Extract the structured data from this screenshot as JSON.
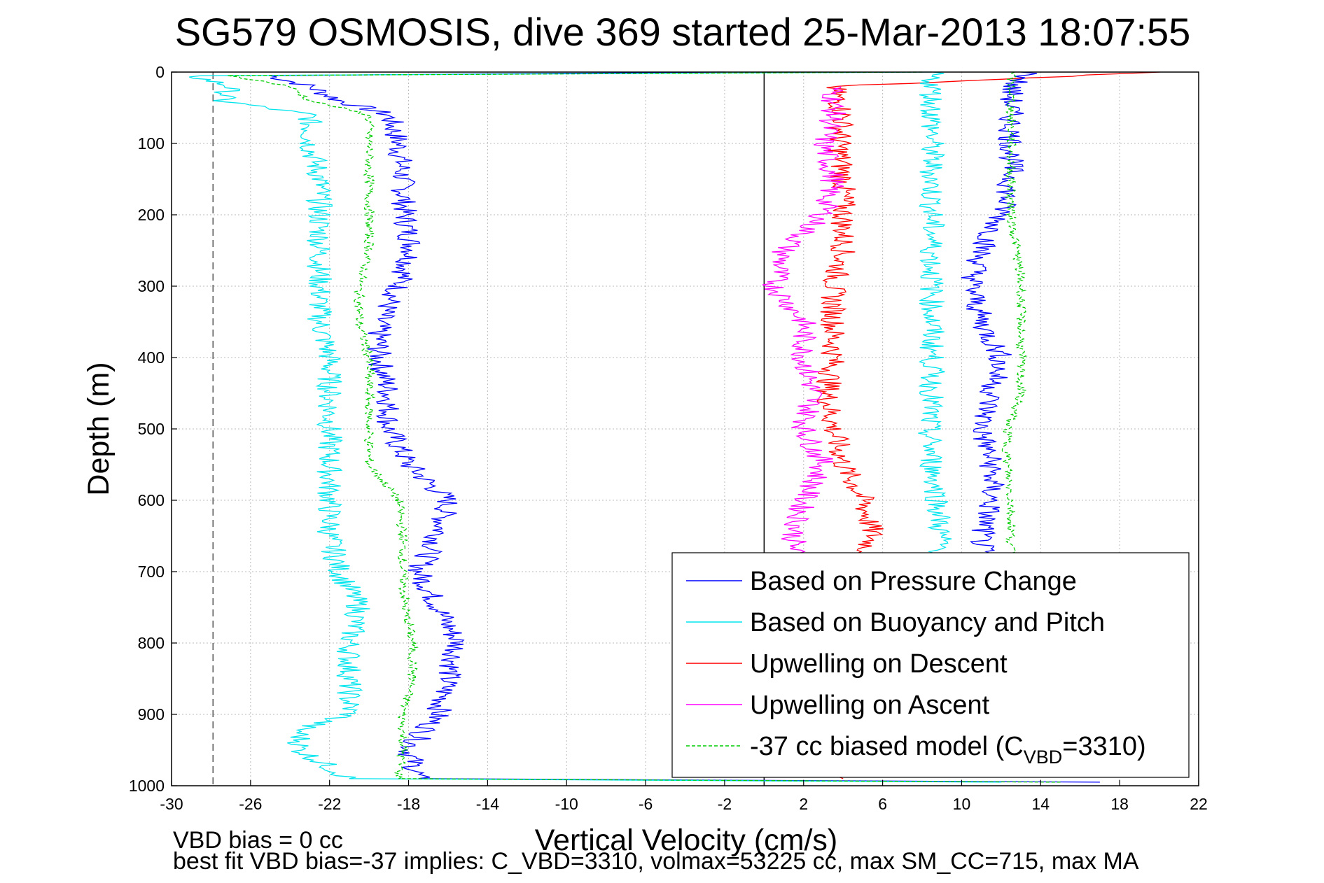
{
  "chart_data": {
    "type": "line",
    "title": "SG579 OSMOSIS, dive 369 started 25-Mar-2013 18:07:55",
    "xlabel": "Vertical Velocity (cm/s)",
    "ylabel": "Depth (m)",
    "xlim": [
      -30,
      22
    ],
    "ylim": [
      0,
      1000
    ],
    "y_reversed": true,
    "grid": true,
    "xticks": [
      -30,
      -26,
      -22,
      -18,
      -14,
      -10,
      -6,
      -2,
      2,
      6,
      10,
      14,
      18,
      22
    ],
    "yticks": [
      0,
      100,
      200,
      300,
      400,
      500,
      600,
      700,
      800,
      900,
      1000
    ],
    "reference_lines": [
      {
        "x": -27.9,
        "style": "dashed",
        "color": "#555555"
      },
      {
        "x": 0,
        "style": "solid",
        "color": "#000000"
      }
    ],
    "legend_position": "lower-right",
    "series": [
      {
        "name": "Based on Pressure Change",
        "color": "#0000ff",
        "style": "solid",
        "depth": [
          0,
          5,
          20,
          40,
          60,
          100,
          150,
          200,
          250,
          300,
          350,
          400,
          450,
          500,
          550,
          600,
          650,
          700,
          750,
          800,
          850,
          900,
          950,
          990,
          995
        ],
        "velocity": [
          -2,
          -25,
          -23,
          -21.5,
          -19,
          -18.5,
          -18.3,
          -18.2,
          -17.8,
          -18.5,
          -19.5,
          -19.5,
          -19,
          -19,
          -18,
          -16,
          -16.5,
          -17.5,
          -16.5,
          -15.5,
          -16,
          -16.5,
          -18,
          -17.5,
          17
        ]
      },
      {
        "name": "Based on Buoyancy and Pitch",
        "color": "#00e5ee",
        "style": "solid",
        "depth": [
          0,
          5,
          20,
          40,
          60,
          100,
          150,
          200,
          250,
          300,
          350,
          400,
          450,
          500,
          550,
          600,
          650,
          700,
          750,
          800,
          850,
          900,
          920,
          950,
          990,
          995
        ],
        "velocity": [
          8.5,
          -29,
          -27,
          -27.5,
          -23,
          -23,
          -22.5,
          -22.5,
          -22.5,
          -22.5,
          -22.5,
          -22,
          -22,
          -22,
          -22,
          -22,
          -22,
          -21.5,
          -20.5,
          -21,
          -21,
          -21,
          -23.5,
          -23.5,
          -21,
          12
        ]
      },
      {
        "name": "Upwelling on Descent",
        "color": "#ff0000",
        "style": "solid",
        "depth": [
          0,
          20,
          60,
          100,
          150,
          200,
          250,
          300,
          350,
          400,
          450,
          500,
          550,
          600,
          650,
          680,
          990
        ],
        "velocity": [
          20,
          3.5,
          4,
          3.8,
          4,
          4,
          4,
          3.5,
          3.5,
          3.5,
          3.2,
          3.5,
          4,
          5,
          5.5,
          5,
          4
        ]
      },
      {
        "name": "Upwelling on Ascent",
        "color": "#ff00ff",
        "style": "solid",
        "depth": [
          20,
          60,
          100,
          150,
          200,
          250,
          300,
          350,
          400,
          450,
          500,
          550,
          600,
          650,
          680
        ],
        "velocity": [
          3.5,
          3.5,
          3,
          3.5,
          3,
          1,
          0.5,
          2,
          2,
          2.5,
          2,
          3,
          2,
          1.5,
          1.5
        ]
      },
      {
        "name": "-37 cc biased model (C",
        "sub": "VBD",
        "name_tail": "=3310)",
        "color": "#00cc00",
        "style": "dashed",
        "depth": [
          0,
          5,
          20,
          40,
          60,
          100,
          150,
          200,
          250,
          300,
          350,
          400,
          450,
          500,
          550,
          600,
          650,
          700,
          750,
          800,
          850,
          900,
          950,
          990,
          995
        ],
        "velocity": [
          8,
          -27,
          -24,
          -23,
          -20,
          -20,
          -20,
          -20,
          -20,
          -20.5,
          -20.5,
          -20,
          -20,
          -20,
          -20,
          -18.5,
          -18.3,
          -18.3,
          -18.2,
          -17.8,
          -17.8,
          -18.3,
          -18.3,
          -18.5,
          15
        ]
      },
      {
        "name": "",
        "color": "#0000ff",
        "style": "solid",
        "depth": [
          0,
          20,
          60,
          100,
          150,
          200,
          250,
          300,
          350,
          400,
          450,
          500,
          550,
          600,
          650,
          680
        ],
        "velocity": [
          13.5,
          12.5,
          12.5,
          12.5,
          12.5,
          12,
          11,
          10.5,
          11,
          12,
          11.5,
          11,
          11.5,
          11.5,
          11,
          11
        ]
      },
      {
        "name": "",
        "color": "#00e5ee",
        "style": "solid",
        "depth": [
          0,
          100,
          200,
          300,
          400,
          440,
          450,
          500,
          550,
          600,
          680
        ],
        "velocity": [
          8.5,
          8.5,
          8.5,
          8.5,
          8.5,
          8.5,
          8.5,
          8.3,
          8.5,
          8.8,
          9
        ]
      },
      {
        "name": "",
        "color": "#00cc00",
        "style": "dashed",
        "depth": [
          0,
          100,
          200,
          250,
          300,
          350,
          400,
          450,
          500,
          550,
          600,
          680
        ],
        "velocity": [
          12.5,
          12.5,
          12.5,
          12.8,
          13,
          13,
          13,
          13,
          12.3,
          12.3,
          12.5,
          12.5
        ]
      }
    ]
  },
  "footer": {
    "line1": "VBD bias = 0 cc",
    "line2": "best fit VBD bias=-37 implies: C_VBD=3310, volmax=53225 cc, max SM_CC=715, max MA"
  }
}
